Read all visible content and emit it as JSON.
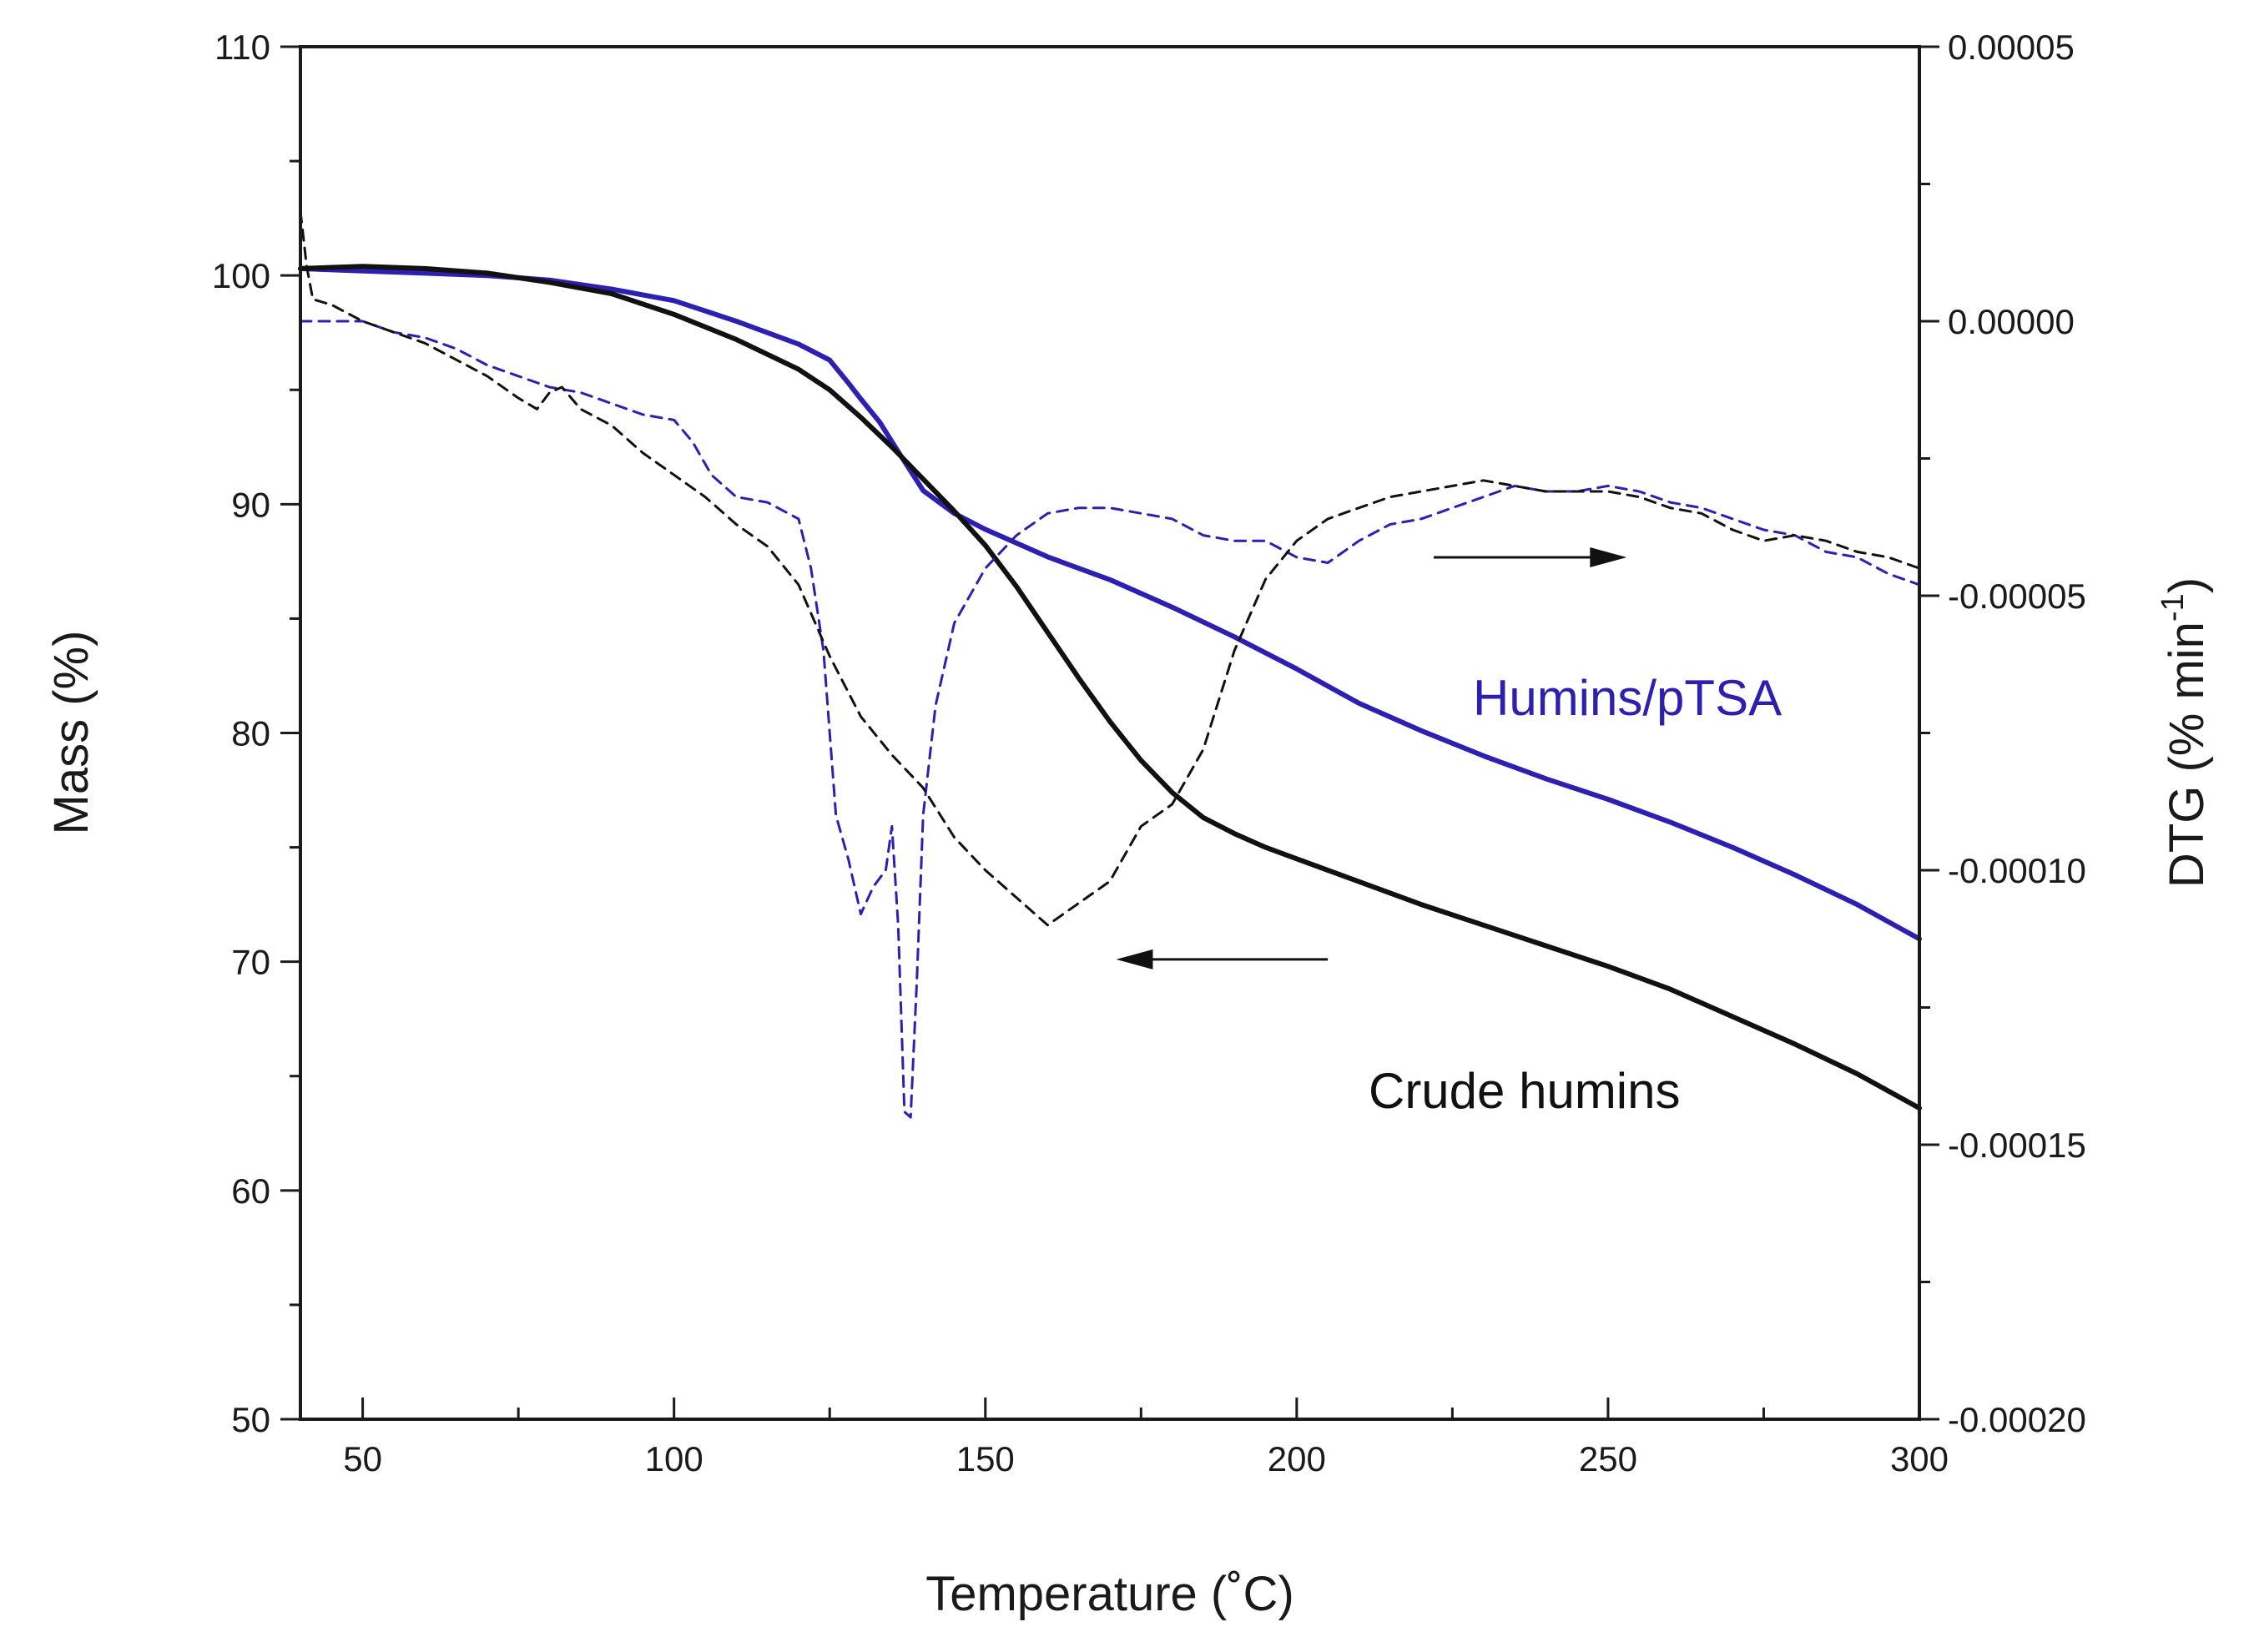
{
  "chart_data": {
    "type": "line",
    "xlabel": "Temperature (˚C)",
    "ylabel_left": "Mass (%)",
    "ylabel_right": "DTG (% min",
    "ylabel_right_sup": "-1",
    "ylabel_right_close": ")",
    "xlim": [
      40,
      300
    ],
    "ylim_left": [
      50,
      110
    ],
    "ylim_right": [
      -0.0002,
      5e-05
    ],
    "x_ticks": [
      50,
      100,
      150,
      200,
      250,
      300
    ],
    "x_tick_labels": [
      "50",
      "100",
      "150",
      "200",
      "250",
      "300"
    ],
    "y_left_ticks": [
      50,
      60,
      70,
      80,
      90,
      100,
      110
    ],
    "y_left_tick_labels": [
      "50",
      "60",
      "70",
      "80",
      "90",
      "100",
      "110"
    ],
    "y_right_ticks": [
      -0.0002,
      -0.00015,
      -0.0001,
      -5e-05,
      0,
      5e-05
    ],
    "y_right_tick_labels": [
      "-0.00020",
      "-0.00015",
      "-0.00010",
      "-0.00005",
      "0.00000",
      "0.00005"
    ],
    "colors": {
      "humins_ptsa": "#2d1fb0",
      "crude": "#111111"
    },
    "annotations": [
      {
        "text": "Humins/pTSA",
        "color": "#2d1fb0"
      },
      {
        "text": "Crude humins",
        "color": "#111111"
      }
    ],
    "arrows": [
      {
        "name": "arrow-left-to-mass-axis",
        "from": [
          205,
          70.1
        ],
        "to": [
          171,
          70.1
        ]
      },
      {
        "name": "arrow-right-to-dtg-axis",
        "from": [
          222,
          -4.3e-05
        ],
        "to": [
          253,
          -4.3e-05
        ]
      }
    ],
    "series": [
      {
        "name": "Humins/pTSA mass",
        "axis": "left",
        "style": "solid",
        "color": "#2d1fb0",
        "x": [
          40,
          50,
          60,
          70,
          80,
          90,
          100,
          110,
          120,
          125,
          128,
          130,
          133,
          136,
          140,
          145,
          150,
          155,
          160,
          170,
          180,
          190,
          200,
          210,
          220,
          230,
          240,
          250,
          260,
          270,
          280,
          290,
          300
        ],
        "y": [
          100.3,
          100.2,
          100.1,
          100,
          99.8,
          99.4,
          98.9,
          98.0,
          97.0,
          96.3,
          95.3,
          94.6,
          93.6,
          92.3,
          90.6,
          89.6,
          88.9,
          88.3,
          87.7,
          86.7,
          85.5,
          84.2,
          82.8,
          81.3,
          80.1,
          79.0,
          78.0,
          77.1,
          76.1,
          75.0,
          73.8,
          72.5,
          71.0
        ]
      },
      {
        "name": "Crude humins mass",
        "axis": "left",
        "style": "solid",
        "color": "#111111",
        "x": [
          40,
          50,
          60,
          70,
          80,
          90,
          100,
          110,
          120,
          125,
          130,
          135,
          140,
          145,
          150,
          155,
          160,
          165,
          170,
          175,
          180,
          185,
          190,
          195,
          200,
          210,
          220,
          230,
          240,
          250,
          260,
          270,
          280,
          290,
          300
        ],
        "y": [
          100.3,
          100.4,
          100.3,
          100.1,
          99.7,
          99.2,
          98.3,
          97.2,
          95.9,
          95.0,
          93.8,
          92.5,
          91.1,
          89.7,
          88.2,
          86.4,
          84.4,
          82.4,
          80.5,
          78.8,
          77.4,
          76.3,
          75.6,
          75.0,
          74.5,
          73.5,
          72.5,
          71.6,
          70.7,
          69.8,
          68.8,
          67.6,
          66.4,
          65.1,
          63.6
        ]
      },
      {
        "name": "Humins/pTSA DTG",
        "axis": "right",
        "style": "dashed",
        "color": "#2d1fb0",
        "x": [
          40,
          45,
          50,
          55,
          60,
          65,
          70,
          75,
          80,
          85,
          90,
          95,
          100,
          103,
          106,
          110,
          115,
          120,
          122,
          124,
          126,
          128,
          130,
          132,
          134,
          135,
          136,
          137,
          138,
          139,
          140,
          142,
          145,
          150,
          155,
          160,
          165,
          170,
          175,
          180,
          185,
          190,
          195,
          200,
          205,
          210,
          215,
          220,
          225,
          230,
          235,
          240,
          245,
          250,
          255,
          260,
          265,
          270,
          275,
          280,
          285,
          290,
          295,
          300
        ],
        "y": [
          0,
          0,
          0,
          -2e-06,
          -3e-06,
          -5e-06,
          -8e-06,
          -1e-05,
          -1.2e-05,
          -1.3e-05,
          -1.5e-05,
          -1.7e-05,
          -1.8e-05,
          -2.2e-05,
          -2.8e-05,
          -3.2e-05,
          -3.3e-05,
          -3.6e-05,
          -4.5e-05,
          -6e-05,
          -9e-05,
          -9.8e-05,
          -0.000108,
          -0.000103,
          -0.0001,
          -9.2e-05,
          -0.00011,
          -0.000144,
          -0.000145,
          -0.00012,
          -9e-05,
          -7e-05,
          -5.5e-05,
          -4.5e-05,
          -3.9e-05,
          -3.5e-05,
          -3.4e-05,
          -3.4e-05,
          -3.5e-05,
          -3.6e-05,
          -3.9e-05,
          -4e-05,
          -4e-05,
          -4.3e-05,
          -4.4e-05,
          -4e-05,
          -3.7e-05,
          -3.6e-05,
          -3.4e-05,
          -3.2e-05,
          -3e-05,
          -3.1e-05,
          -3.1e-05,
          -3e-05,
          -3.1e-05,
          -3.3e-05,
          -3.4e-05,
          -3.6e-05,
          -3.8e-05,
          -3.9e-05,
          -4.2e-05,
          -4.3e-05,
          -4.6e-05,
          -4.8e-05
        ]
      },
      {
        "name": "Crude humins DTG",
        "axis": "right",
        "style": "dashed",
        "color": "#111111",
        "x": [
          40,
          41,
          42,
          45,
          50,
          55,
          60,
          65,
          70,
          75,
          78,
          80,
          82,
          85,
          90,
          95,
          100,
          105,
          110,
          115,
          120,
          125,
          130,
          135,
          140,
          145,
          150,
          155,
          160,
          165,
          170,
          175,
          180,
          185,
          190,
          195,
          200,
          205,
          210,
          215,
          220,
          225,
          230,
          235,
          240,
          245,
          250,
          255,
          260,
          265,
          270,
          275,
          280,
          285,
          290,
          295,
          300
        ],
        "y": [
          2e-05,
          1e-05,
          4e-06,
          3e-06,
          0,
          -2e-06,
          -4e-06,
          -7e-06,
          -1e-05,
          -1.4e-05,
          -1.6e-05,
          -1.3e-05,
          -1.2e-05,
          -1.6e-05,
          -1.9e-05,
          -2.4e-05,
          -2.8e-05,
          -3.2e-05,
          -3.7e-05,
          -4.1e-05,
          -4.8e-05,
          -6.1e-05,
          -7.2e-05,
          -7.9e-05,
          -8.5e-05,
          -9.4e-05,
          -0.0001,
          -0.000105,
          -0.00011,
          -0.000106,
          -0.000102,
          -9.2e-05,
          -8.8e-05,
          -7.8e-05,
          -6e-05,
          -4.7e-05,
          -4e-05,
          -3.6e-05,
          -3.4e-05,
          -3.2e-05,
          -3.1e-05,
          -3e-05,
          -2.9e-05,
          -3e-05,
          -3.1e-05,
          -3.1e-05,
          -3.1e-05,
          -3.2e-05,
          -3.4e-05,
          -3.5e-05,
          -3.8e-05,
          -4e-05,
          -3.9e-05,
          -4e-05,
          -4.2e-05,
          -4.3e-05,
          -4.5e-05
        ]
      }
    ]
  }
}
